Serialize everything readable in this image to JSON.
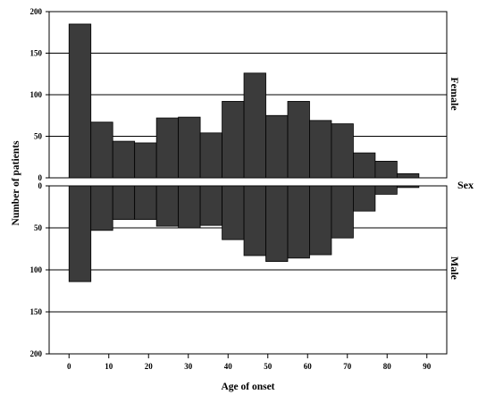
{
  "chart_data": {
    "type": "bar",
    "subtype": "back-to-back histogram",
    "xlabel": "Age of onset",
    "ylabel": "Number of patients",
    "facet_title": "Sex",
    "x_ticks": [
      0,
      10,
      20,
      30,
      40,
      50,
      60,
      70,
      80,
      90
    ],
    "xlim": [
      -5,
      95
    ],
    "y_ticks": [
      0,
      50,
      100,
      150,
      200
    ],
    "ylim": [
      0,
      200
    ],
    "bin_width": 5.5,
    "bin_starts": [
      0,
      5.5,
      11,
      16.5,
      22,
      27.5,
      33,
      38.5,
      44,
      49.5,
      55,
      60.5,
      66,
      71.5,
      77,
      82.5
    ],
    "grid": "horizontal",
    "bar_color": "#3b3b3b",
    "series": [
      {
        "name": "Female",
        "values": [
          185,
          67,
          44,
          42,
          72,
          73,
          54,
          92,
          126,
          75,
          92,
          69,
          65,
          30,
          20,
          5
        ]
      },
      {
        "name": "Male",
        "values": [
          114,
          53,
          40,
          40,
          48,
          50,
          47,
          64,
          83,
          90,
          86,
          82,
          62,
          30,
          10,
          2
        ]
      }
    ]
  }
}
